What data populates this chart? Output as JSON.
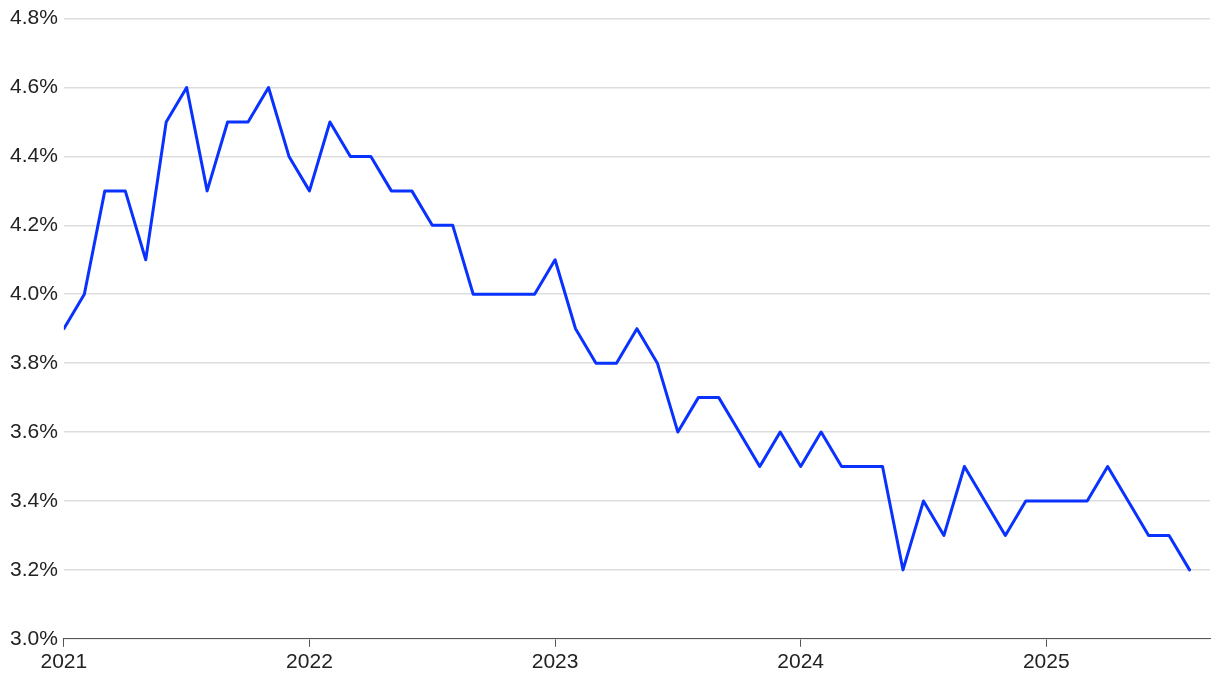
{
  "chart_data": {
    "type": "line",
    "x": [
      "2021-01",
      "2021-02",
      "2021-03",
      "2021-04",
      "2021-05",
      "2021-06",
      "2021-07",
      "2021-08",
      "2021-09",
      "2021-10",
      "2021-11",
      "2021-12",
      "2022-01",
      "2022-02",
      "2022-03",
      "2022-04",
      "2022-05",
      "2022-06",
      "2022-07",
      "2022-08",
      "2022-09",
      "2022-10",
      "2022-11",
      "2022-12",
      "2023-01",
      "2023-02",
      "2023-03",
      "2023-04",
      "2023-05",
      "2023-06",
      "2023-07",
      "2023-08",
      "2023-09",
      "2023-10",
      "2023-11",
      "2023-12",
      "2024-01",
      "2024-02",
      "2024-03",
      "2024-04",
      "2024-05",
      "2024-06",
      "2024-07",
      "2024-08",
      "2024-09",
      "2024-10",
      "2024-11",
      "2024-12",
      "2025-01",
      "2025-02",
      "2025-03",
      "2025-04",
      "2025-05",
      "2025-06",
      "2025-07",
      "2025-08"
    ],
    "series": [
      {
        "color": "#0a32ff",
        "values": [
          3.9,
          4.0,
          4.3,
          4.3,
          4.1,
          4.5,
          4.6,
          4.3,
          4.5,
          4.5,
          4.6,
          4.4,
          4.3,
          4.5,
          4.4,
          4.4,
          4.3,
          4.3,
          4.2,
          4.2,
          4.0,
          4.0,
          4.0,
          4.0,
          4.1,
          3.9,
          3.8,
          3.8,
          3.9,
          3.8,
          3.6,
          3.7,
          3.7,
          3.6,
          3.5,
          3.6,
          3.5,
          3.6,
          3.5,
          3.5,
          3.5,
          3.2,
          3.4,
          3.3,
          3.5,
          3.4,
          3.3,
          3.4,
          3.4,
          3.4,
          3.4,
          3.5,
          3.4,
          3.3,
          3.3,
          3.2
        ]
      }
    ],
    "xlim": [
      "2021-01",
      "2025-09"
    ],
    "xticks": [
      "2021",
      "2022",
      "2023",
      "2024",
      "2025"
    ],
    "ylim": [
      3.0,
      4.8
    ],
    "yticks": [
      {
        "value": 3.0,
        "label": "3.0%"
      },
      {
        "value": 3.2,
        "label": "3.2%"
      },
      {
        "value": 3.4,
        "label": "3.4%"
      },
      {
        "value": 3.6,
        "label": "3.6%"
      },
      {
        "value": 3.8,
        "label": "3.8%"
      },
      {
        "value": 4.0,
        "label": "4.0%"
      },
      {
        "value": 4.2,
        "label": "4.2%"
      },
      {
        "value": 4.4,
        "label": "4.4%"
      },
      {
        "value": 4.6,
        "label": "4.6%"
      },
      {
        "value": 4.8,
        "label": "4.8%"
      }
    ],
    "grid": "y",
    "legend": false,
    "marker": "none",
    "line_style": "solid"
  }
}
